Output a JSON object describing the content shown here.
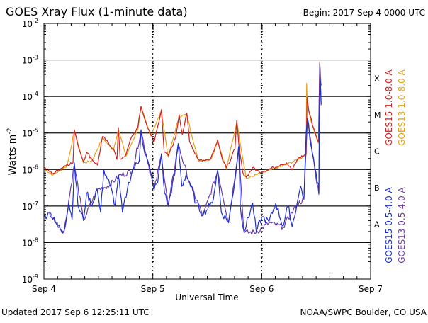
{
  "chart_data": {
    "type": "line",
    "title": "GOES Xray Flux (1-minute data)",
    "begin_label": "Begin:  2017 Sep 4 0000 UTC",
    "xlabel": "Universal Time",
    "ylabel": "Watts m",
    "ylabel_sup": "-2",
    "x_unit": "hours since 2017 Sep 4 0000 UTC",
    "xlim": [
      0,
      72
    ],
    "x_ticks": [
      {
        "h": 0,
        "label": "Sep 4"
      },
      {
        "h": 24,
        "label": "Sep 5"
      },
      {
        "h": 48,
        "label": "Sep 6"
      },
      {
        "h": 72,
        "label": "Sep 7"
      }
    ],
    "y_scale": "log",
    "ylim_log10": [
      -9,
      -2
    ],
    "y_ticks": [
      {
        "exp": -2,
        "base": "10",
        "sup": "-2"
      },
      {
        "exp": -3,
        "base": "10",
        "sup": "-3"
      },
      {
        "exp": -4,
        "base": "10",
        "sup": "-4"
      },
      {
        "exp": -5,
        "base": "10",
        "sup": "-5"
      },
      {
        "exp": -6,
        "base": "10",
        "sup": "-6"
      },
      {
        "exp": -7,
        "base": "10",
        "sup": "-7"
      },
      {
        "exp": -8,
        "base": "10",
        "sup": "-8"
      },
      {
        "exp": -9,
        "base": "10",
        "sup": "-9"
      }
    ],
    "flare_classes": [
      {
        "label": "X",
        "exp": -3.5
      },
      {
        "label": "M",
        "exp": -4.5
      },
      {
        "label": "C",
        "exp": -5.5
      },
      {
        "label": "B",
        "exp": -6.5
      },
      {
        "label": "A",
        "exp": -7.5
      }
    ],
    "grid": true,
    "series": [
      {
        "name": "GOES13 1.0-8.0 A",
        "color": "#e8a317",
        "jitter": 0.03,
        "points_log10": [
          [
            0,
            -5.99
          ],
          [
            2,
            -6.15
          ],
          [
            5.1,
            -5.9
          ],
          [
            6.7,
            -4.95
          ],
          [
            8.7,
            -5.82
          ],
          [
            10.6,
            -5.76
          ],
          [
            12.9,
            -5.14
          ],
          [
            15.3,
            -5.47
          ],
          [
            16.4,
            -4.9
          ],
          [
            18.1,
            -5.63
          ],
          [
            20.7,
            -4.9
          ],
          [
            21.4,
            -4.3
          ],
          [
            23.5,
            -5.08
          ],
          [
            25.9,
            -4.4
          ],
          [
            27.4,
            -5.66
          ],
          [
            29.8,
            -4.54
          ],
          [
            31.5,
            -4.5
          ],
          [
            34,
            -5.76
          ],
          [
            36.8,
            -5.72
          ],
          [
            38.3,
            -5.22
          ],
          [
            40.2,
            -5.99
          ],
          [
            42.5,
            -4.7
          ],
          [
            44.6,
            -6.25
          ],
          [
            47.5,
            -6.11
          ],
          [
            50.6,
            -5.99
          ],
          [
            53.5,
            -5.86
          ],
          [
            56.1,
            -5.72
          ],
          [
            57.8,
            -5.6
          ],
          [
            57.9,
            -3.64
          ],
          [
            58.0,
            -4.02
          ],
          [
            58.4,
            -4.43
          ],
          [
            59.4,
            -4.88
          ],
          [
            60.5,
            -5.28
          ],
          [
            60.8,
            -3.08
          ],
          [
            61.1,
            -3.72
          ]
        ]
      },
      {
        "name": "GOES15 1.0-8.0 A",
        "color": "#d42020",
        "jitter": 0.04,
        "points_log10": [
          [
            0,
            -5.95
          ],
          [
            2,
            -6.11
          ],
          [
            5.1,
            -5.86
          ],
          [
            6.4,
            -5.82
          ],
          [
            6.7,
            -4.91
          ],
          [
            7.5,
            -5.33
          ],
          [
            8.7,
            -5.78
          ],
          [
            9.4,
            -5.53
          ],
          [
            10.6,
            -5.72
          ],
          [
            11.8,
            -5.88
          ],
          [
            12.9,
            -5.1
          ],
          [
            15.3,
            -5.43
          ],
          [
            16.1,
            -5.72
          ],
          [
            16.4,
            -4.85
          ],
          [
            16.8,
            -5.72
          ],
          [
            18.1,
            -5.59
          ],
          [
            19.2,
            -5.14
          ],
          [
            20.7,
            -4.85
          ],
          [
            21.4,
            -4.27
          ],
          [
            22.3,
            -4.66
          ],
          [
            23.5,
            -5.04
          ],
          [
            24.3,
            -5.24
          ],
          [
            25.9,
            -4.36
          ],
          [
            26.5,
            -5.53
          ],
          [
            27.4,
            -5.62
          ],
          [
            29,
            -5.14
          ],
          [
            29.8,
            -4.5
          ],
          [
            30.5,
            -5.04
          ],
          [
            31.5,
            -4.46
          ],
          [
            32.1,
            -5.24
          ],
          [
            34,
            -5.72
          ],
          [
            35.5,
            -5.76
          ],
          [
            36.8,
            -5.68
          ],
          [
            38.3,
            -5.18
          ],
          [
            39.4,
            -5.76
          ],
          [
            40.2,
            -5.95
          ],
          [
            41.3,
            -5.68
          ],
          [
            42.1,
            -5.43
          ],
          [
            42.5,
            -4.66
          ],
          [
            43,
            -5.37
          ],
          [
            43.8,
            -6.07
          ],
          [
            44.6,
            -6.21
          ],
          [
            46,
            -5.95
          ],
          [
            47.5,
            -6.07
          ],
          [
            49.1,
            -6.01
          ],
          [
            50.6,
            -5.95
          ],
          [
            52.2,
            -5.86
          ],
          [
            53.5,
            -5.82
          ],
          [
            54.7,
            -6.01
          ],
          [
            56.1,
            -5.68
          ],
          [
            57.3,
            -5.62
          ],
          [
            57.8,
            -5.57
          ],
          [
            58,
            -4.02
          ],
          [
            58.4,
            -4.4
          ],
          [
            59.4,
            -4.85
          ],
          [
            60.5,
            -5.24
          ],
          [
            60.8,
            -3.05
          ],
          [
            60.9,
            -3.55
          ],
          [
            61.1,
            -3.69
          ]
        ]
      },
      {
        "name": "GOES13 0.5-4.0 A",
        "color": "#6a3fa0",
        "jitter": 0.08,
        "points_log10": [
          [
            1.2,
            -7.2
          ],
          [
            4.4,
            -7.72
          ],
          [
            6.7,
            -5.86
          ],
          [
            8.7,
            -7.4
          ],
          [
            11.7,
            -6.56
          ],
          [
            14.5,
            -6.43
          ],
          [
            16.4,
            -6.18
          ],
          [
            19.5,
            -6.04
          ],
          [
            21.4,
            -4.95
          ],
          [
            24.3,
            -6.56
          ],
          [
            25.9,
            -5.6
          ],
          [
            27.4,
            -7.01
          ],
          [
            29.6,
            -5.32
          ],
          [
            32.1,
            -6.37
          ],
          [
            35.1,
            -7.26
          ],
          [
            38.3,
            -6.04
          ],
          [
            40.7,
            -7.46
          ],
          [
            42.9,
            -5.4
          ],
          [
            44.1,
            -7.73
          ],
          [
            46.8,
            -7.72
          ],
          [
            49.6,
            -7.46
          ],
          [
            52.7,
            -7.58
          ],
          [
            55.8,
            -6.95
          ],
          [
            57.3,
            -6.82
          ],
          [
            58.1,
            -4.63
          ],
          [
            59.7,
            -5.98
          ],
          [
            60.6,
            -6.68
          ],
          [
            60.8,
            -3.12
          ],
          [
            61.1,
            -4.24
          ]
        ]
      },
      {
        "name": "GOES15 0.5-4.0 A",
        "color": "#1f2fd0",
        "jitter": 0.1,
        "points_log10": [
          [
            0,
            -7.3
          ],
          [
            1.2,
            -7.17
          ],
          [
            2.8,
            -7.5
          ],
          [
            4.4,
            -7.7
          ],
          [
            5.5,
            -6.92
          ],
          [
            6.2,
            -7.37
          ],
          [
            6.7,
            -5.82
          ],
          [
            7.5,
            -6.98
          ],
          [
            8.7,
            -7.37
          ],
          [
            9.4,
            -6.65
          ],
          [
            10.6,
            -6.98
          ],
          [
            11.7,
            -6.53
          ],
          [
            12.5,
            -7.17
          ],
          [
            13.2,
            -6.01
          ],
          [
            14.5,
            -6.4
          ],
          [
            15.7,
            -6.98
          ],
          [
            16.4,
            -6.15
          ],
          [
            17.3,
            -7.17
          ],
          [
            18.4,
            -6.53
          ],
          [
            19.5,
            -6.01
          ],
          [
            21,
            -5.76
          ],
          [
            21.4,
            -4.91
          ],
          [
            22,
            -5.43
          ],
          [
            23.5,
            -6.07
          ],
          [
            24.3,
            -6.53
          ],
          [
            25.1,
            -6.34
          ],
          [
            25.9,
            -5.57
          ],
          [
            26.6,
            -6.65
          ],
          [
            27.4,
            -6.98
          ],
          [
            28.8,
            -6.15
          ],
          [
            29.6,
            -5.29
          ],
          [
            30.4,
            -6.46
          ],
          [
            31.3,
            -6.15
          ],
          [
            32.1,
            -6.34
          ],
          [
            33.5,
            -6.92
          ],
          [
            35.1,
            -7.23
          ],
          [
            36.6,
            -6.98
          ],
          [
            37.1,
            -6.92
          ],
          [
            38.3,
            -6.01
          ],
          [
            39.1,
            -7.17
          ],
          [
            40.7,
            -7.43
          ],
          [
            42.2,
            -6.21
          ],
          [
            42.9,
            -5.37
          ],
          [
            43.3,
            -7.04
          ],
          [
            44.1,
            -7.7
          ],
          [
            46,
            -6.92
          ],
          [
            46.8,
            -7.7
          ],
          [
            48,
            -7.31
          ],
          [
            49.6,
            -7.43
          ],
          [
            51.1,
            -6.92
          ],
          [
            52.7,
            -7.56
          ],
          [
            53.8,
            -6.98
          ],
          [
            54.7,
            -7.56
          ],
          [
            55.8,
            -6.92
          ],
          [
            56.6,
            -6.46
          ],
          [
            57.3,
            -6.79
          ],
          [
            57.8,
            -4.98
          ],
          [
            58.1,
            -4.6
          ],
          [
            58.9,
            -5.37
          ],
          [
            59.7,
            -5.95
          ],
          [
            60.5,
            -6.4
          ],
          [
            60.6,
            -6.65
          ],
          [
            60.8,
            -3.1
          ],
          [
            61.1,
            -4.21
          ]
        ]
      }
    ],
    "legend": {
      "placement": "right",
      "long_labels": [
        {
          "text": "GOES15 1.0-8.0 A",
          "color": "#d42020"
        },
        {
          "text": "GOES13 1.0-8.0 A",
          "color": "#e8a317"
        }
      ],
      "short_labels": [
        {
          "text": "GOES15 0.5-4.0 A",
          "color": "#1f2fd0"
        },
        {
          "text": "GOES13 0.5-4.0 A",
          "color": "#6a3fa0"
        }
      ]
    },
    "footer_left": "Updated 2017 Sep  6 12:25:11 UTC",
    "footer_right": "NOAA/SWPC Boulder, CO USA"
  }
}
